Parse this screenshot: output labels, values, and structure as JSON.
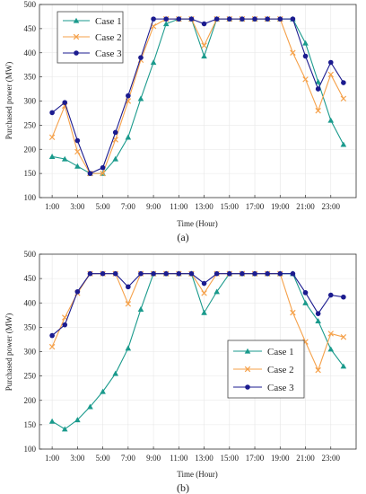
{
  "colors": {
    "case1": "#1a9a8c",
    "case2": "#f5a14a",
    "case3": "#1b1b8f"
  },
  "chart_data": [
    {
      "type": "line",
      "panel_label": "(a)",
      "xlabel": "Time (Hour)",
      "ylabel": "Purchased power (MW)",
      "ylim": [
        100,
        500
      ],
      "yticks": [
        100,
        150,
        200,
        250,
        300,
        350,
        400,
        450,
        500
      ],
      "xlim": [
        0,
        25
      ],
      "x": [
        1,
        2,
        3,
        4,
        5,
        6,
        7,
        8,
        9,
        10,
        11,
        12,
        13,
        14,
        15,
        16,
        17,
        18,
        19,
        20,
        21,
        22,
        23,
        24
      ],
      "xticks": [
        1,
        3,
        5,
        7,
        9,
        11,
        13,
        15,
        17,
        19,
        21,
        23
      ],
      "xtick_labels": [
        "1:00",
        "3:00",
        "5:00",
        "7:00",
        "9:00",
        "11:00",
        "13:00",
        "15:00",
        "17:00",
        "19:00",
        "21:00",
        "23:00"
      ],
      "grid": true,
      "legend_position": "top-left",
      "series": [
        {
          "name": "Case 1",
          "color_key": "case1",
          "marker": "triangle",
          "values": [
            185,
            180,
            165,
            150,
            150,
            180,
            225,
            305,
            380,
            460,
            470,
            470,
            393,
            470,
            470,
            470,
            470,
            470,
            470,
            470,
            420,
            340,
            260,
            210
          ]
        },
        {
          "name": "Case 2",
          "color_key": "case2",
          "marker": "x",
          "values": [
            225,
            290,
            195,
            150,
            150,
            220,
            300,
            385,
            455,
            470,
            470,
            470,
            415,
            470,
            470,
            470,
            470,
            470,
            470,
            400,
            345,
            280,
            355,
            305
          ]
        },
        {
          "name": "Case 3",
          "color_key": "case3",
          "marker": "circle",
          "values": [
            276,
            297,
            218,
            150,
            162,
            235,
            311,
            390,
            470,
            470,
            470,
            470,
            460,
            470,
            470,
            470,
            470,
            470,
            470,
            470,
            393,
            325,
            380,
            338
          ]
        }
      ]
    },
    {
      "type": "line",
      "panel_label": "(b)",
      "xlabel": "Time (Hour)",
      "ylabel": "Purchased power (MW)",
      "ylim": [
        100,
        500
      ],
      "yticks": [
        100,
        150,
        200,
        250,
        300,
        350,
        400,
        450,
        500
      ],
      "xlim": [
        0,
        25
      ],
      "x": [
        1,
        2,
        3,
        4,
        5,
        6,
        7,
        8,
        9,
        10,
        11,
        12,
        13,
        14,
        15,
        16,
        17,
        18,
        19,
        20,
        21,
        22,
        23,
        24
      ],
      "xticks": [
        1,
        3,
        5,
        7,
        9,
        11,
        13,
        15,
        17,
        19,
        21,
        23
      ],
      "xtick_labels": [
        "1:00",
        "3:00",
        "5:00",
        "7:00",
        "9:00",
        "11:00",
        "13:00",
        "15:00",
        "17:00",
        "19:00",
        "21:00",
        "23:00"
      ],
      "grid": true,
      "legend_position": "lower-center",
      "series": [
        {
          "name": "Case 1",
          "color_key": "case1",
          "marker": "triangle",
          "values": [
            157,
            141,
            160,
            187,
            218,
            255,
            307,
            387,
            460,
            460,
            460,
            460,
            380,
            423,
            460,
            460,
            460,
            460,
            460,
            460,
            400,
            363,
            305,
            270
          ]
        },
        {
          "name": "Case 2",
          "color_key": "case2",
          "marker": "x",
          "values": [
            310,
            370,
            420,
            460,
            460,
            460,
            398,
            460,
            460,
            460,
            460,
            460,
            420,
            460,
            460,
            460,
            460,
            460,
            460,
            380,
            320,
            262,
            337,
            330
          ]
        },
        {
          "name": "Case 3",
          "color_key": "case3",
          "marker": "circle",
          "values": [
            333,
            355,
            423,
            460,
            460,
            460,
            433,
            460,
            460,
            460,
            460,
            460,
            440,
            460,
            460,
            460,
            460,
            460,
            460,
            460,
            421,
            378,
            416,
            412
          ]
        }
      ]
    }
  ]
}
